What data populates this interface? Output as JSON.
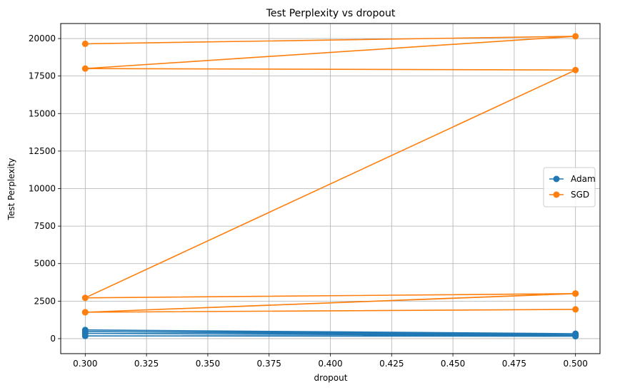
{
  "chart_data": {
    "type": "line",
    "title": "Test Perplexity vs dropout",
    "xlabel": "dropout",
    "ylabel": "Test Perplexity",
    "xlim": [
      0.29,
      0.51
    ],
    "ylim": [
      -1000,
      21000
    ],
    "xticks": [
      "0.300",
      "0.325",
      "0.350",
      "0.375",
      "0.400",
      "0.425",
      "0.450",
      "0.475",
      "0.500"
    ],
    "yticks": [
      "0",
      "2500",
      "5000",
      "7500",
      "10000",
      "12500",
      "15000",
      "17500",
      "20000"
    ],
    "grid": true,
    "legend_position": "center-right",
    "series": [
      {
        "name": "Adam",
        "color": "#1f77b4",
        "x": [
          0.3,
          0.5,
          0.3,
          0.5,
          0.3,
          0.5,
          0.3,
          0.5
        ],
        "y": [
          580,
          330,
          470,
          250,
          350,
          200,
          180,
          160
        ]
      },
      {
        "name": "SGD",
        "color": "#ff7f0e",
        "x": [
          0.3,
          0.5,
          0.3,
          0.5,
          0.3,
          0.5,
          0.3,
          0.5,
          0.3,
          0.5
        ],
        "y": [
          19650,
          20150,
          18000,
          17900,
          2720,
          3000,
          1760,
          3010,
          1760,
          1950
        ]
      }
    ]
  }
}
